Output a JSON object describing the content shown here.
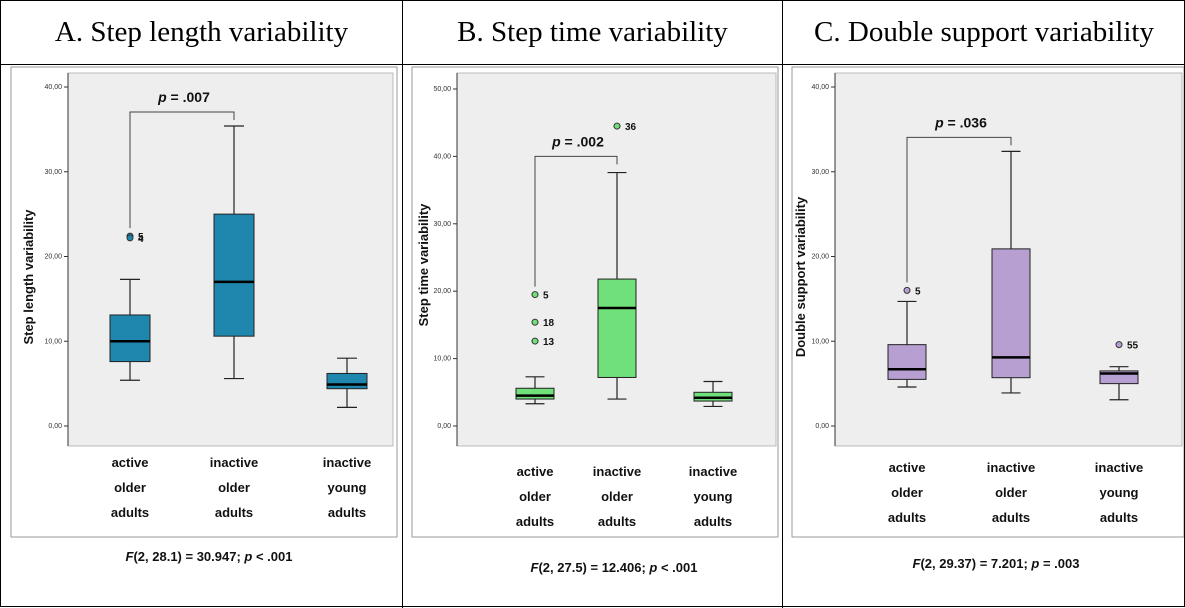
{
  "chart_data": [
    {
      "type": "box",
      "title": "A. Step length variability",
      "ylabel": "Step length variability",
      "ylim": [
        0,
        40
      ],
      "yticks": [
        "0,00",
        "10,00",
        "20,00",
        "30,00",
        "40,00"
      ],
      "categories": [
        "active older adults",
        "inactive older adults",
        "inactive young adults"
      ],
      "category_lines": [
        [
          "active",
          "older",
          "adults"
        ],
        [
          "inactive",
          "older",
          "adults"
        ],
        [
          "inactive",
          "young",
          "adults"
        ]
      ],
      "color": "#1f87ad",
      "boxes": [
        {
          "category": "active older adults",
          "whisker_low": 5.4,
          "q1": 7.6,
          "median": 10.0,
          "q3": 13.1,
          "whisker_high": 17.3,
          "outliers": [
            {
              "value": 22.4,
              "label": "5"
            },
            {
              "value": 22.2,
              "label": "4"
            }
          ]
        },
        {
          "category": "inactive older adults",
          "whisker_low": 5.6,
          "q1": 10.6,
          "median": 17.0,
          "q3": 25.0,
          "whisker_high": 35.4,
          "outliers": []
        },
        {
          "category": "inactive young adults",
          "whisker_low": 2.2,
          "q1": 4.4,
          "median": 4.9,
          "q3": 6.2,
          "whisker_high": 8.0,
          "outliers": []
        }
      ],
      "comparison": {
        "from": 0,
        "to": 1,
        "label": "p = .007"
      },
      "statistic": "F(2, 28.1) = 30.947; p < .001"
    },
    {
      "type": "box",
      "title": "B. Step time variability",
      "ylabel": "Step time variability",
      "ylim": [
        0,
        50
      ],
      "yticks": [
        "0,00",
        "10,00",
        "20,00",
        "30,00",
        "40,00",
        "50,00"
      ],
      "categories": [
        "active older adults",
        "inactive older adults",
        "inactive young adults"
      ],
      "category_lines": [
        [
          "active",
          "older",
          "adults"
        ],
        [
          "inactive",
          "older",
          "adults"
        ],
        [
          "inactive",
          "young",
          "adults"
        ]
      ],
      "color": "#6fe07a",
      "boxes": [
        {
          "category": "active older adults",
          "whisker_low": 3.3,
          "q1": 4.0,
          "median": 4.5,
          "q3": 5.6,
          "whisker_high": 7.3,
          "outliers": [
            {
              "value": 19.5,
              "label": "5"
            },
            {
              "value": 15.4,
              "label": "18"
            },
            {
              "value": 12.6,
              "label": "13"
            }
          ]
        },
        {
          "category": "inactive older adults",
          "whisker_low": 4.0,
          "q1": 7.2,
          "median": 17.5,
          "q3": 21.8,
          "whisker_high": 37.6,
          "outliers": [
            {
              "value": 44.5,
              "label": "36"
            }
          ]
        },
        {
          "category": "inactive young adults",
          "whisker_low": 2.9,
          "q1": 3.7,
          "median": 4.2,
          "q3": 5.0,
          "whisker_high": 6.6,
          "outliers": []
        }
      ],
      "comparison": {
        "from": 0,
        "to": 1,
        "label": "p = .002"
      },
      "statistic": "F(2, 27.5) = 12.406; p < .001"
    },
    {
      "type": "box",
      "title": "C. Double support variability",
      "ylabel": "Double support variability",
      "ylim": [
        0,
        40
      ],
      "yticks": [
        "0,00",
        "10,00",
        "20,00",
        "30,00",
        "40,00"
      ],
      "categories": [
        "active older adults",
        "inactive older adults",
        "inactive young adults"
      ],
      "category_lines": [
        [
          "active",
          "older",
          "adults"
        ],
        [
          "inactive",
          "older",
          "adults"
        ],
        [
          "inactive",
          "young",
          "adults"
        ]
      ],
      "color": "#b89fd2",
      "boxes": [
        {
          "category": "active older adults",
          "whisker_low": 4.6,
          "q1": 5.5,
          "median": 6.7,
          "q3": 9.6,
          "whisker_high": 14.7,
          "outliers": [
            {
              "value": 16.0,
              "label": "5"
            }
          ]
        },
        {
          "category": "inactive older adults",
          "whisker_low": 3.9,
          "q1": 5.7,
          "median": 8.1,
          "q3": 20.9,
          "whisker_high": 32.4,
          "outliers": []
        },
        {
          "category": "inactive young adults",
          "whisker_low": 3.1,
          "q1": 5.0,
          "median": 6.2,
          "q3": 6.5,
          "whisker_high": 7.0,
          "outliers": [
            {
              "value": 9.6,
              "label": "55"
            }
          ]
        }
      ],
      "comparison": {
        "from": 0,
        "to": 1,
        "label": "p = .036"
      },
      "statistic": "F(2, 29.37) = 7.201; p = .003"
    }
  ]
}
